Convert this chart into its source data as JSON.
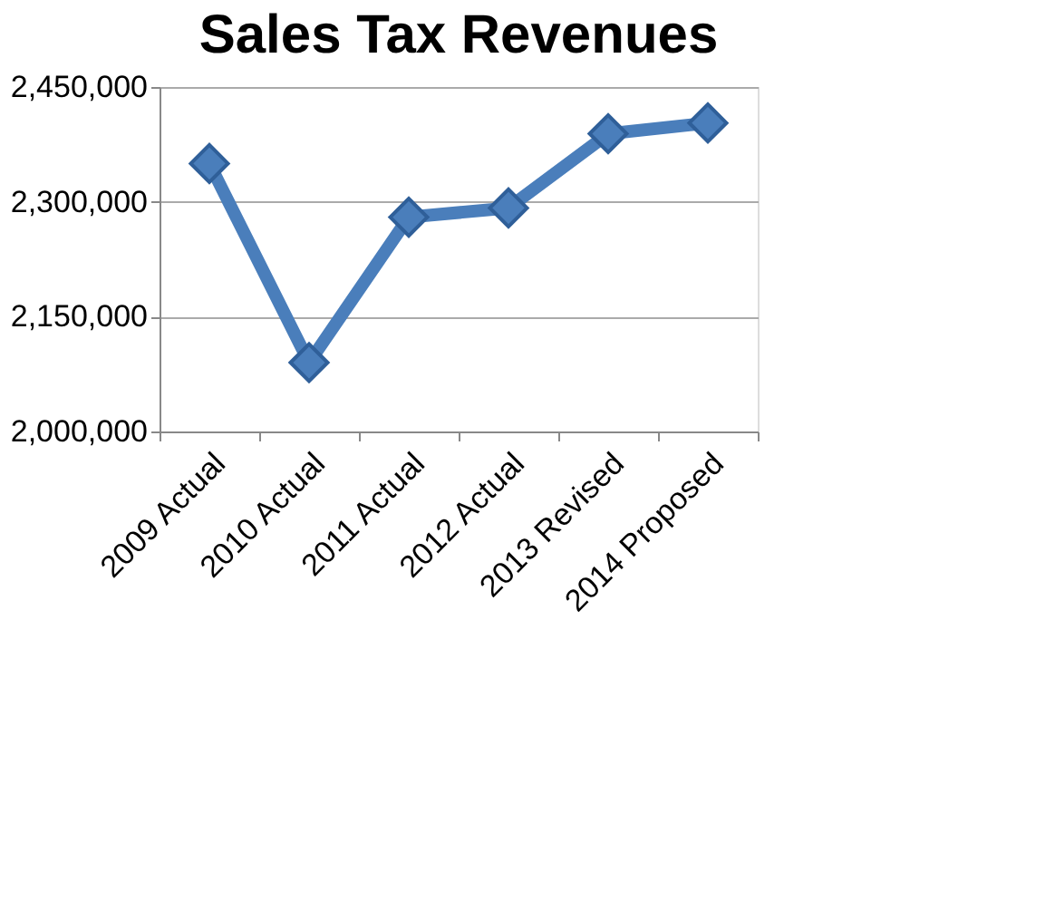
{
  "chart_data": {
    "type": "line",
    "title": "Sales Tax Revenues",
    "categories": [
      "2009 Actual",
      "2010 Actual",
      "2011 Actual",
      "2012 Actual",
      "2013 Revised",
      "2014 Proposed"
    ],
    "series": [
      {
        "color": "#4a7ebb",
        "values": [
          2350000,
          2090000,
          2280000,
          2292000,
          2389000,
          2403000
        ]
      }
    ],
    "ylim": [
      2000000,
      2450000
    ],
    "yticks": [
      {
        "value": 2000000,
        "label": "2,000,000"
      },
      {
        "value": 2150000,
        "label": "2,150,000"
      },
      {
        "value": 2300000,
        "label": "2,300,000"
      },
      {
        "value": 2450000,
        "label": "2,450,000"
      }
    ],
    "grid": "y",
    "marker": "diamond",
    "line_style": "solid",
    "legend": false
  }
}
